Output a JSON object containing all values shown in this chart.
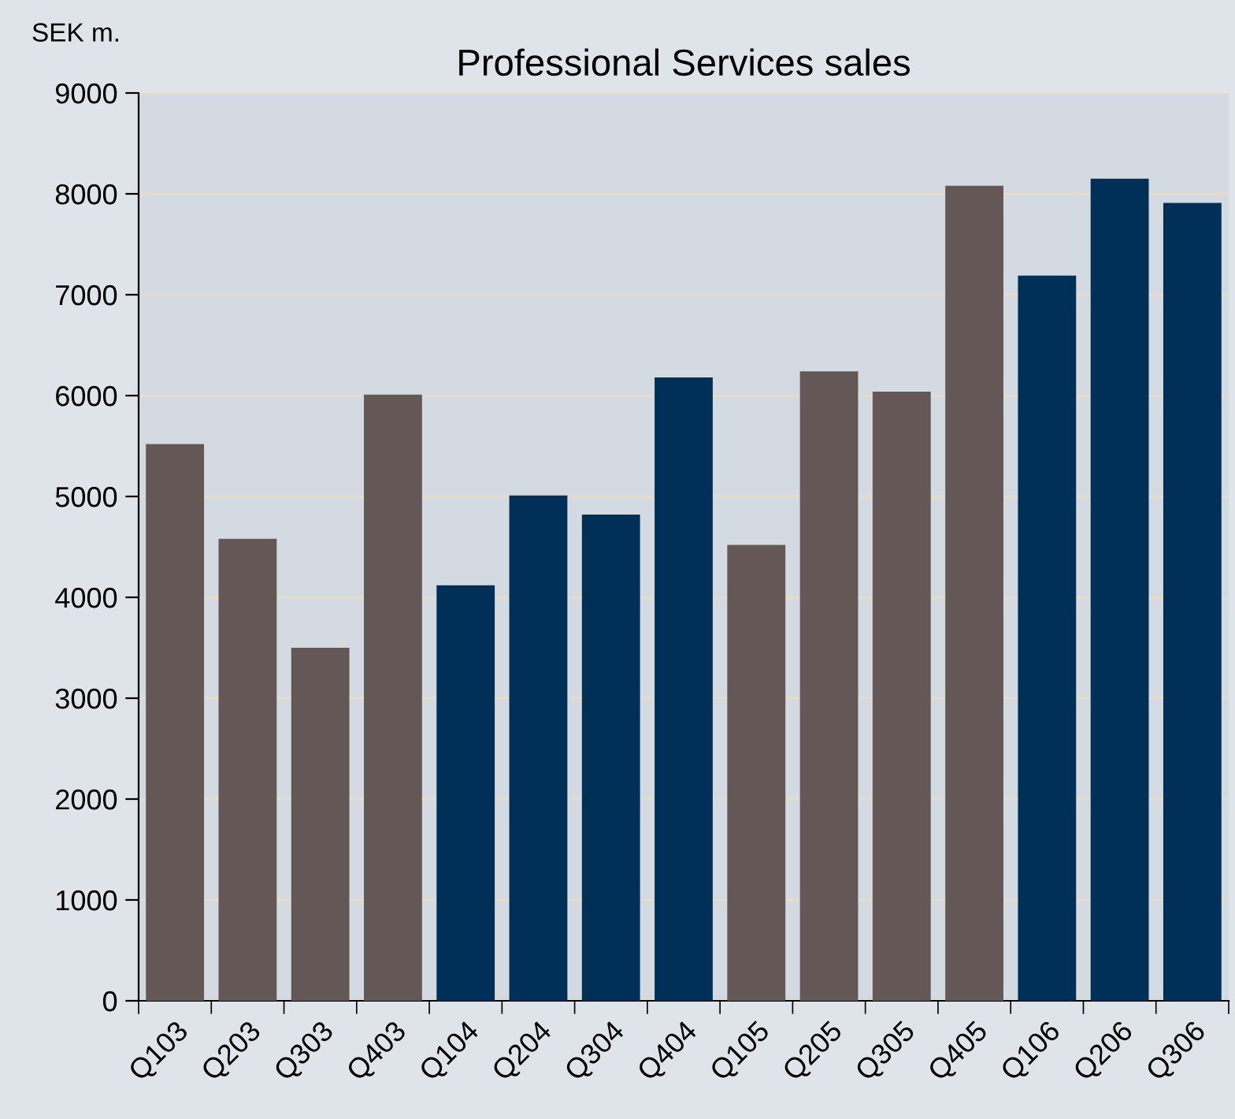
{
  "chart_data": {
    "type": "bar",
    "title": "Professional Services sales",
    "ylabel": "SEK m.",
    "categories": [
      "Q103",
      "Q203",
      "Q303",
      "Q403",
      "Q104",
      "Q204",
      "Q304",
      "Q404",
      "Q105",
      "Q205",
      "Q305",
      "Q405",
      "Q106",
      "Q206",
      "Q306"
    ],
    "values": [
      5520,
      4580,
      3500,
      6010,
      4120,
      5010,
      4820,
      6180,
      4520,
      6240,
      6040,
      8080,
      7190,
      8150,
      7910
    ],
    "colors": [
      "#635856",
      "#635856",
      "#635856",
      "#635856",
      "#003057",
      "#003057",
      "#003057",
      "#003057",
      "#635856",
      "#635856",
      "#635856",
      "#635856",
      "#003057",
      "#003057",
      "#003057"
    ],
    "ylim": [
      0,
      9000
    ],
    "yticks": [
      0,
      1000,
      2000,
      3000,
      4000,
      5000,
      6000,
      7000,
      8000,
      9000
    ],
    "grid": "y"
  }
}
